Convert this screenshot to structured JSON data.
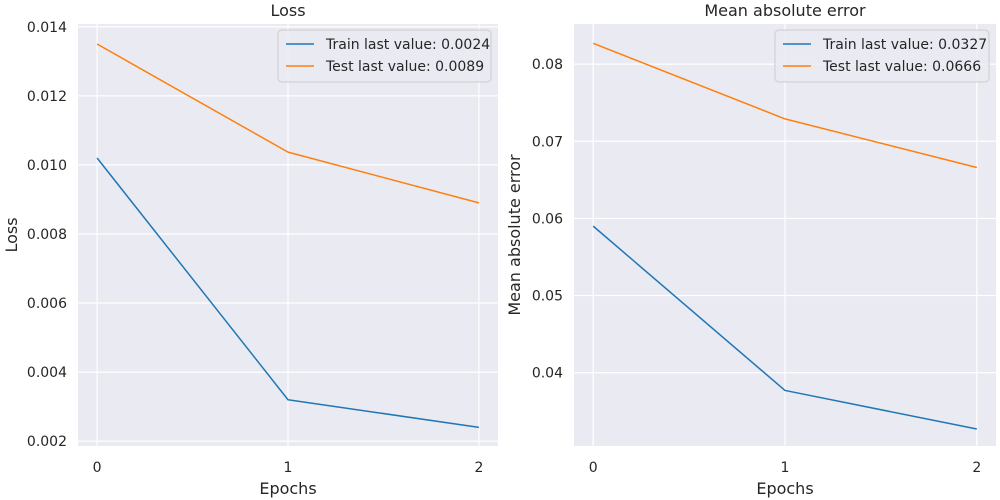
{
  "chart_data": [
    {
      "type": "line",
      "title": "Loss",
      "xlabel": "Epochs",
      "ylabel": "Loss",
      "x": [
        0,
        1,
        2
      ],
      "xticks": [
        "0",
        "1",
        "2"
      ],
      "xlim": [
        -0.1,
        2.1
      ],
      "ylim": [
        0.00186,
        0.01408
      ],
      "yticks": [
        0.002,
        0.004,
        0.006,
        0.008,
        0.01,
        0.012,
        0.014
      ],
      "ytick_labels": [
        "0.002",
        "0.004",
        "0.006",
        "0.008",
        "0.010",
        "0.012",
        "0.014"
      ],
      "grid": true,
      "legend_position": "top-right",
      "series": [
        {
          "name": "Train last value: 0.0024",
          "values": [
            0.0102,
            0.0032,
            0.0024
          ],
          "color": "#1f77b4"
        },
        {
          "name": "Test last value: 0.0089",
          "values": [
            0.0135,
            0.01037,
            0.0089
          ],
          "color": "#ff7f0e"
        }
      ]
    },
    {
      "type": "line",
      "title": "Mean absolute error",
      "xlabel": "Epochs",
      "ylabel": "Mean absolute error",
      "x": [
        0,
        1,
        2
      ],
      "xticks": [
        "0",
        "1",
        "2"
      ],
      "xlim": [
        -0.1,
        2.1
      ],
      "ylim": [
        0.0305,
        0.0852
      ],
      "yticks": [
        0.04,
        0.05,
        0.06,
        0.07,
        0.08
      ],
      "ytick_labels": [
        "0.04",
        "0.05",
        "0.06",
        "0.07",
        "0.08"
      ],
      "grid": true,
      "legend_position": "top-right",
      "series": [
        {
          "name": "Train last value: 0.0327",
          "values": [
            0.059,
            0.0377,
            0.0327
          ],
          "color": "#1f77b4"
        },
        {
          "name": "Test last value: 0.0666",
          "values": [
            0.0827,
            0.0729,
            0.0666
          ],
          "color": "#ff7f0e"
        }
      ]
    }
  ],
  "colors": {
    "plot_background": "#eaeaf2",
    "grid": "#ffffff",
    "text": "#262626"
  }
}
